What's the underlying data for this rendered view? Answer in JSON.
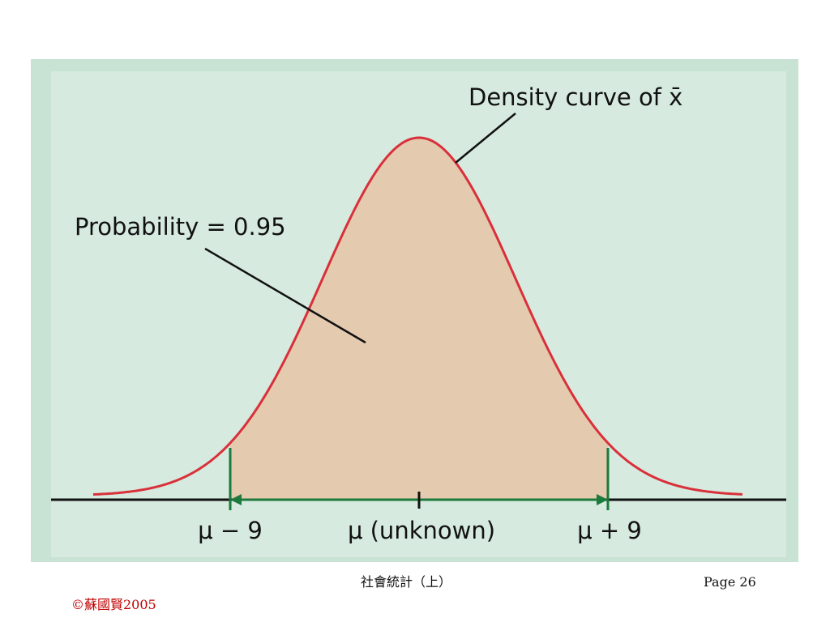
{
  "figure": {
    "curve_label": "Density curve of x̄",
    "probability_label": "Probability = 0.95",
    "left_label": "μ − 9",
    "center_label": "μ (unknown)",
    "right_label": "μ + 9"
  },
  "footer": {
    "course": "社會統計（上）",
    "page": "Page 26",
    "copyright": "©蘇國賢2005"
  }
}
